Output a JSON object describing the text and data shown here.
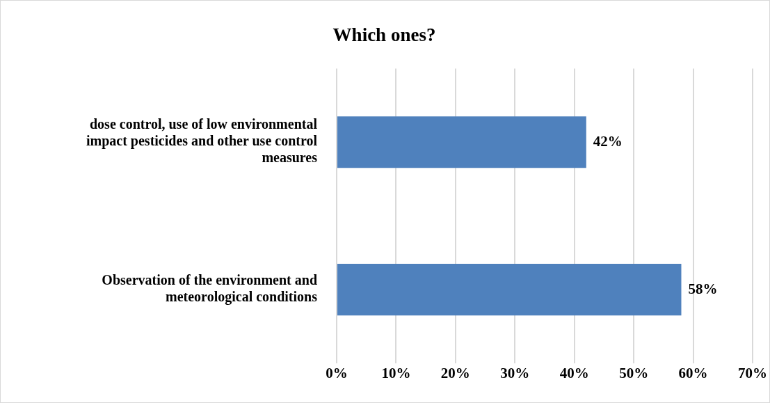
{
  "chart_data": {
    "type": "bar",
    "orientation": "horizontal",
    "title": "Which ones?",
    "categories": [
      "dose control, use of low environmental impact pesticides and other use control measures",
      "Observation of the environment and meteorological conditions"
    ],
    "values": [
      42,
      58
    ],
    "color": "#4f81bd",
    "value_labels": [
      "42%",
      "58%"
    ],
    "xlim": [
      0,
      70
    ],
    "xticks": [
      {
        "value": 0,
        "label": "0%"
      },
      {
        "value": 10,
        "label": "10%"
      },
      {
        "value": 20,
        "label": "20%"
      },
      {
        "value": 30,
        "label": "30%"
      },
      {
        "value": 40,
        "label": "40%"
      },
      {
        "value": 50,
        "label": "50%"
      },
      {
        "value": 60,
        "label": "60%"
      },
      {
        "value": 70,
        "label": "70%"
      }
    ],
    "grid": "x",
    "legend": false
  }
}
